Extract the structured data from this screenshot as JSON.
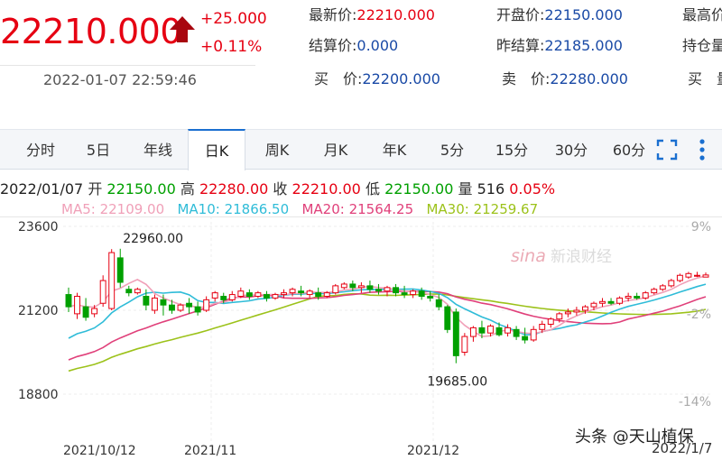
{
  "quote": {
    "price": "22210.000",
    "change": "+25.000",
    "change_pct": "+0.11%",
    "datetime": "2022-01-07 22:59:46",
    "up_color": "#e60012"
  },
  "fields": [
    {
      "label": "最新价:",
      "value": "22210.000"
    },
    {
      "label": "开盘价:",
      "value": "22150.000"
    },
    {
      "label": "最高价",
      "value": ""
    },
    {
      "label": "结算价:",
      "value": "0.000"
    },
    {
      "label": "昨结算:",
      "value": "22185.000"
    },
    {
      "label": "持仓量",
      "value": ""
    },
    {
      "label": "买　价:",
      "value": "22200.000"
    },
    {
      "label": "卖　价:",
      "value": "22280.000"
    },
    {
      "label": "买　量",
      "value": ""
    }
  ],
  "tabs": [
    "分时",
    "5日",
    "年线",
    "日K",
    "周K",
    "月K",
    "年K",
    "5分",
    "15分",
    "30分",
    "60分"
  ],
  "active_tab": "日K",
  "icons": [
    "fullscreen-icon",
    "more-vertical-icon",
    "up-arrow-icon"
  ],
  "info": {
    "date": "2022/01/07",
    "open_label": "开",
    "open": "22150.00",
    "high_label": "高",
    "high": "22280.00",
    "close_label": "收",
    "close": "22210.00",
    "low_label": "低",
    "low": "22150.00",
    "vol_label": "量",
    "vol": "516",
    "pct": "0.05%"
  },
  "ma": {
    "ma5": "MA5: 22109.00",
    "ma10": "MA10: 21866.50",
    "ma20": "MA20: 21564.25",
    "ma30": "MA30: 21259.67"
  },
  "colors": {
    "up": "#e60012",
    "down": "#00a000",
    "ma5": "#f0a0b8",
    "ma10": "#2fbcd8",
    "ma20": "#e0407a",
    "ma30": "#9cc21a",
    "price_text": "#1a4aa6"
  },
  "watermark": "新浪财经",
  "credit": "头条 @天山植保",
  "bottom_date": "2022/1/7",
  "chart_data": {
    "type": "candlestick",
    "y_ticks": [
      "23600",
      "21200",
      "18800"
    ],
    "pct_ticks": [
      "9%",
      "-2%",
      "-14%"
    ],
    "x_ticks": [
      "2021/10/12",
      "2021/11",
      "2021/12"
    ],
    "annotations": [
      {
        "text": "22960.00",
        "value": 22960
      },
      {
        "text": "19685.00",
        "value": 19685
      }
    ],
    "ylim": [
      18400,
      23800
    ],
    "candles": [
      {
        "o": 21650,
        "h": 21850,
        "c": 21300,
        "l": 21150
      },
      {
        "o": 21100,
        "h": 21700,
        "c": 21600,
        "l": 20950
      },
      {
        "o": 21300,
        "h": 21550,
        "c": 21000,
        "l": 20900
      },
      {
        "o": 21100,
        "h": 21350,
        "c": 21250,
        "l": 21000
      },
      {
        "o": 21400,
        "h": 22200,
        "c": 22050,
        "l": 21300
      },
      {
        "o": 21250,
        "h": 22950,
        "c": 22850,
        "l": 21200
      },
      {
        "o": 22700,
        "h": 22960,
        "c": 22000,
        "l": 21850
      },
      {
        "o": 21800,
        "h": 21900,
        "c": 21700,
        "l": 21600
      },
      {
        "o": 21700,
        "h": 21850,
        "c": 21800,
        "l": 21650
      },
      {
        "o": 21600,
        "h": 21800,
        "c": 21350,
        "l": 21200
      },
      {
        "o": 21200,
        "h": 21650,
        "c": 21550,
        "l": 21100
      },
      {
        "o": 21500,
        "h": 21650,
        "c": 21350,
        "l": 21050
      },
      {
        "o": 21350,
        "h": 21500,
        "c": 21200,
        "l": 21100
      },
      {
        "o": 21200,
        "h": 21400,
        "c": 21350,
        "l": 21150
      },
      {
        "o": 21400,
        "h": 21550,
        "c": 21300,
        "l": 21100
      },
      {
        "o": 21300,
        "h": 21450,
        "c": 21150,
        "l": 21050
      },
      {
        "o": 21200,
        "h": 21600,
        "c": 21500,
        "l": 21150
      },
      {
        "o": 21550,
        "h": 21750,
        "c": 21700,
        "l": 21450
      },
      {
        "o": 21600,
        "h": 21700,
        "c": 21500,
        "l": 21400
      },
      {
        "o": 21500,
        "h": 21750,
        "c": 21650,
        "l": 21450
      },
      {
        "o": 21600,
        "h": 21850,
        "c": 21750,
        "l": 21550
      },
      {
        "o": 21700,
        "h": 21800,
        "c": 21600,
        "l": 21500
      },
      {
        "o": 21600,
        "h": 21750,
        "c": 21700,
        "l": 21550
      },
      {
        "o": 21650,
        "h": 21750,
        "c": 21550,
        "l": 21450
      },
      {
        "o": 21550,
        "h": 21700,
        "c": 21650,
        "l": 21500
      },
      {
        "o": 21650,
        "h": 21800,
        "c": 21700,
        "l": 21550
      },
      {
        "o": 21700,
        "h": 21850,
        "c": 21800,
        "l": 21600
      },
      {
        "o": 21750,
        "h": 21900,
        "c": 21700,
        "l": 21600
      },
      {
        "o": 21650,
        "h": 21800,
        "c": 21750,
        "l": 21550
      },
      {
        "o": 21700,
        "h": 21850,
        "c": 21600,
        "l": 21500
      },
      {
        "o": 21600,
        "h": 21750,
        "c": 21700,
        "l": 21550
      },
      {
        "o": 21700,
        "h": 21950,
        "c": 21900,
        "l": 21650
      },
      {
        "o": 21850,
        "h": 22000,
        "c": 21950,
        "l": 21800
      },
      {
        "o": 21950,
        "h": 22050,
        "c": 21850,
        "l": 21750
      },
      {
        "o": 21850,
        "h": 22000,
        "c": 21900,
        "l": 21700
      },
      {
        "o": 21900,
        "h": 22050,
        "c": 21800,
        "l": 21700
      },
      {
        "o": 21800,
        "h": 21950,
        "c": 21750,
        "l": 21650
      },
      {
        "o": 21750,
        "h": 21900,
        "c": 21850,
        "l": 21600
      },
      {
        "o": 21850,
        "h": 21950,
        "c": 21700,
        "l": 21600
      },
      {
        "o": 21700,
        "h": 21900,
        "c": 21650,
        "l": 21550
      },
      {
        "o": 21650,
        "h": 21800,
        "c": 21750,
        "l": 21550
      },
      {
        "o": 21750,
        "h": 21850,
        "c": 21600,
        "l": 21500
      },
      {
        "o": 21600,
        "h": 21750,
        "c": 21550,
        "l": 21450
      },
      {
        "o": 21500,
        "h": 21650,
        "c": 21300,
        "l": 21200
      },
      {
        "o": 21300,
        "h": 21350,
        "c": 20650,
        "l": 20550
      },
      {
        "o": 21150,
        "h": 21250,
        "c": 19900,
        "l": 19685
      },
      {
        "o": 20000,
        "h": 20550,
        "c": 20450,
        "l": 19900
      },
      {
        "o": 20450,
        "h": 20750,
        "c": 20700,
        "l": 20300
      },
      {
        "o": 20700,
        "h": 20900,
        "c": 20550,
        "l": 20400
      },
      {
        "o": 20550,
        "h": 20800,
        "c": 20750,
        "l": 20450
      },
      {
        "o": 20700,
        "h": 20850,
        "c": 20500,
        "l": 20450
      },
      {
        "o": 20550,
        "h": 20800,
        "c": 20700,
        "l": 20450
      },
      {
        "o": 20650,
        "h": 20750,
        "c": 20450,
        "l": 20350
      },
      {
        "o": 20450,
        "h": 20700,
        "c": 20350,
        "l": 20250
      },
      {
        "o": 20350,
        "h": 20750,
        "c": 20650,
        "l": 20300
      },
      {
        "o": 20650,
        "h": 20900,
        "c": 20800,
        "l": 20550
      },
      {
        "o": 20800,
        "h": 21000,
        "c": 20950,
        "l": 20700
      },
      {
        "o": 20950,
        "h": 21150,
        "c": 21100,
        "l": 20850
      },
      {
        "o": 21100,
        "h": 21250,
        "c": 21150,
        "l": 21000
      },
      {
        "o": 21150,
        "h": 21300,
        "c": 21200,
        "l": 21050
      },
      {
        "o": 21200,
        "h": 21350,
        "c": 21300,
        "l": 21100
      },
      {
        "o": 21300,
        "h": 21450,
        "c": 21400,
        "l": 21200
      },
      {
        "o": 21400,
        "h": 21550,
        "c": 21450,
        "l": 21300
      },
      {
        "o": 21450,
        "h": 21550,
        "c": 21400,
        "l": 21350
      },
      {
        "o": 21400,
        "h": 21600,
        "c": 21550,
        "l": 21350
      },
      {
        "o": 21550,
        "h": 21700,
        "c": 21600,
        "l": 21450
      },
      {
        "o": 21600,
        "h": 21700,
        "c": 21550,
        "l": 21500
      },
      {
        "o": 21550,
        "h": 21750,
        "c": 21700,
        "l": 21500
      },
      {
        "o": 21700,
        "h": 21850,
        "c": 21800,
        "l": 21650
      },
      {
        "o": 21800,
        "h": 21950,
        "c": 21900,
        "l": 21750
      },
      {
        "o": 21900,
        "h": 22100,
        "c": 22050,
        "l": 21850
      },
      {
        "o": 22050,
        "h": 22250,
        "c": 22200,
        "l": 22000
      },
      {
        "o": 22150,
        "h": 22300,
        "c": 22250,
        "l": 22100
      },
      {
        "o": 22200,
        "h": 22300,
        "c": 22200,
        "l": 22150
      },
      {
        "o": 22150,
        "h": 22280,
        "c": 22210,
        "l": 22150
      }
    ]
  }
}
